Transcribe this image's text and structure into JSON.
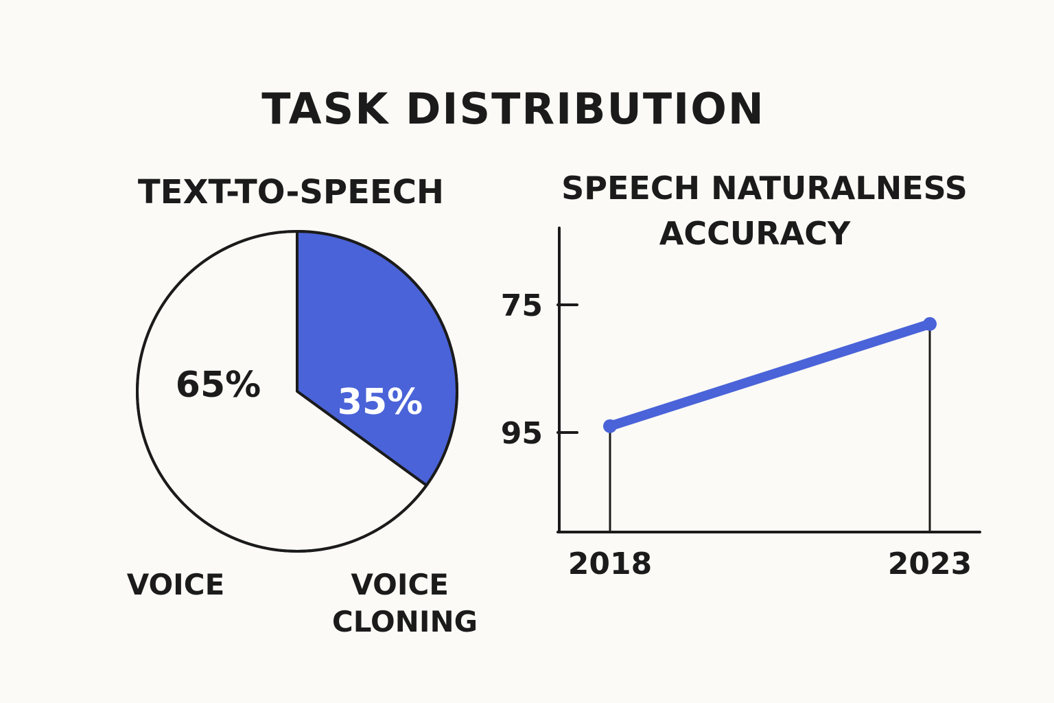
{
  "page": {
    "title": "TASK DISTRIBUTION"
  },
  "colors": {
    "background": "#fbfaf6",
    "ink": "#1b1b1b",
    "accent": "#4a63d8",
    "accent_text": "#ffffff"
  },
  "chart_data": [
    {
      "type": "pie",
      "title": "TEXT-TO-SPEECH",
      "slices": [
        {
          "label": "VOICE",
          "value": 65,
          "value_label": "65%"
        },
        {
          "label": "VOICE\nCLONING",
          "value": 35,
          "value_label": "35%"
        }
      ]
    },
    {
      "type": "line",
      "title": "SPEECH NATURALNESS\nACCURACY",
      "xlabel": "",
      "ylabel": "",
      "x_ticks": [
        "2018",
        "2023"
      ],
      "y_ticks": [
        "75",
        "95"
      ],
      "grid": false,
      "series": [
        {
          "x": [
            "2018",
            "2023"
          ],
          "y": [
            94,
            78
          ]
        }
      ]
    }
  ]
}
